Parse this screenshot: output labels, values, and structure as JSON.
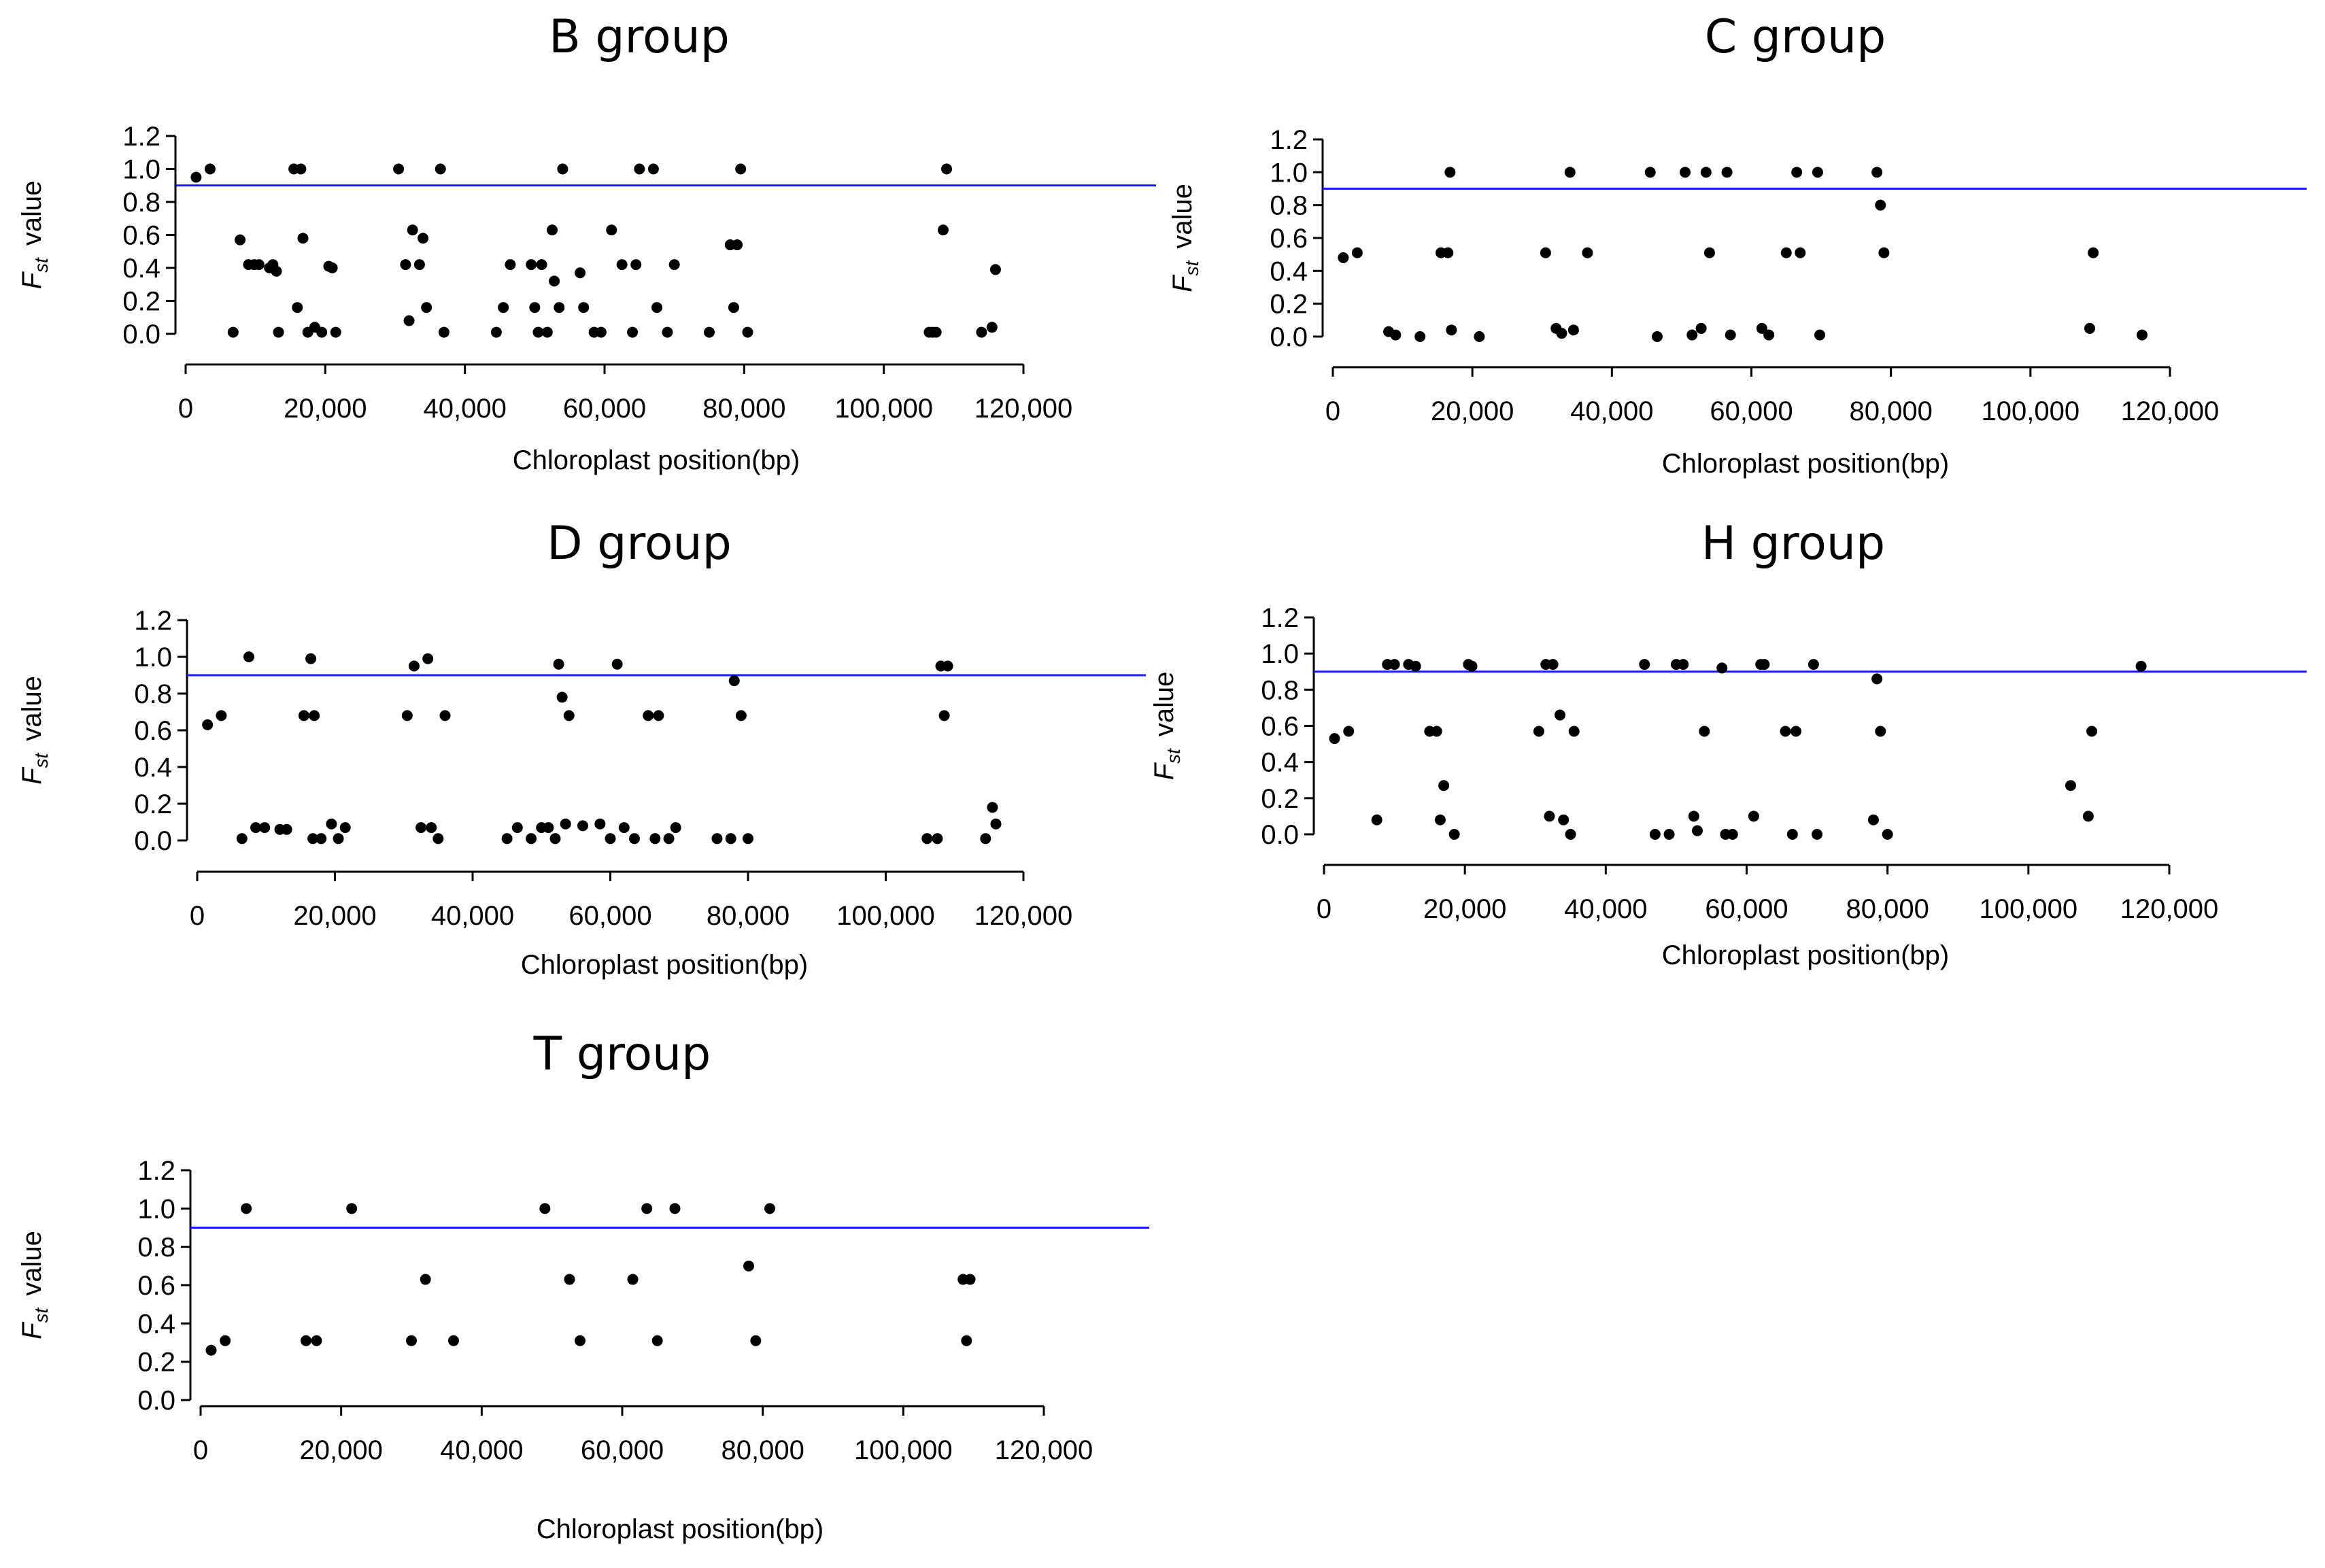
{
  "colors": {
    "threshold_line": "#1a1aff",
    "points": "#000000"
  },
  "chart_data": [
    {
      "type": "scatter",
      "title": "B group",
      "xlabel": "Chloroplast position(bp)",
      "ylabel_symbol": "F",
      "ylabel_subscript": "st",
      "ylabel_word": "value",
      "xlim": [
        0,
        120000
      ],
      "ylim": [
        0,
        1.2
      ],
      "xticks": [
        0,
        20000,
        40000,
        60000,
        80000,
        100000,
        120000
      ],
      "xtick_labels": [
        "0",
        "20,000",
        "40,000",
        "60,000",
        "80,000",
        "100,000",
        "120,000"
      ],
      "yticks": [
        0,
        0.2,
        0.4,
        0.6,
        0.8,
        1.0,
        1.2
      ],
      "ytick_labels": [
        "0.0",
        "0.2",
        "0.4",
        "0.6",
        "0.8",
        "1.0",
        "1.2"
      ],
      "threshold": 0.9,
      "x": [
        1500,
        3500,
        6800,
        7800,
        9000,
        9800,
        10500,
        12000,
        12500,
        13000,
        13300,
        15500,
        16500,
        16000,
        16800,
        17500,
        18500,
        19500,
        20500,
        21000,
        21500,
        30500,
        31500,
        32000,
        32500,
        33500,
        34000,
        34500,
        36500,
        37000,
        44500,
        45500,
        46500,
        49500,
        50000,
        50500,
        51000,
        51800,
        52500,
        52800,
        53500,
        54000,
        56500,
        57000,
        58500,
        59500,
        61000,
        62500,
        64000,
        64500,
        65000,
        67000,
        67500,
        69000,
        70000,
        75000,
        78000,
        78500,
        79000,
        79500,
        80500,
        106500,
        107000,
        107500,
        108500,
        109000,
        114000,
        115500,
        116000
      ],
      "y": [
        0.95,
        1.0,
        0.01,
        0.57,
        0.42,
        0.42,
        0.42,
        0.4,
        0.42,
        0.38,
        0.01,
        1.0,
        1.0,
        0.16,
        0.58,
        0.01,
        0.04,
        0.01,
        0.41,
        0.4,
        0.01,
        1.0,
        0.42,
        0.08,
        0.63,
        0.42,
        0.58,
        0.16,
        1.0,
        0.01,
        0.01,
        0.16,
        0.42,
        0.42,
        0.16,
        0.01,
        0.42,
        0.01,
        0.63,
        0.32,
        0.16,
        1.0,
        0.37,
        0.16,
        0.01,
        0.01,
        0.63,
        0.42,
        0.01,
        0.42,
        1.0,
        1.0,
        0.16,
        0.01,
        0.42,
        0.01,
        0.54,
        0.16,
        0.54,
        1.0,
        0.01,
        0.01,
        0.01,
        0.01,
        0.63,
        1.0,
        0.01,
        0.04,
        0.39
      ]
    },
    {
      "type": "scatter",
      "title": "C group",
      "xlabel": "Chloroplast position(bp)",
      "ylabel_symbol": "F",
      "ylabel_subscript": "st",
      "ylabel_word": "value",
      "xlim": [
        0,
        120000
      ],
      "ylim": [
        0,
        1.2
      ],
      "xticks": [
        0,
        20000,
        40000,
        60000,
        80000,
        100000,
        120000
      ],
      "xtick_labels": [
        "0",
        "20,000",
        "40,000",
        "60,000",
        "80,000",
        "100,000",
        "120,000"
      ],
      "yticks": [
        0,
        0.2,
        0.4,
        0.6,
        0.8,
        1.0,
        1.2
      ],
      "ytick_labels": [
        "0.0",
        "0.2",
        "0.4",
        "0.6",
        "0.8",
        "1.0",
        "1.2"
      ],
      "threshold": 0.9,
      "x": [
        1500,
        3500,
        8000,
        9000,
        12500,
        15500,
        16500,
        16800,
        17000,
        21000,
        30500,
        32000,
        32800,
        34000,
        34500,
        36500,
        45500,
        46500,
        50500,
        51500,
        52800,
        53500,
        54000,
        56500,
        57000,
        61500,
        62500,
        65000,
        66500,
        67000,
        69500,
        69800,
        78000,
        78500,
        79000,
        108500,
        109000,
        116000
      ],
      "y": [
        0.48,
        0.51,
        0.03,
        0.01,
        0.0,
        0.51,
        0.51,
        1.0,
        0.04,
        0.0,
        0.51,
        0.05,
        0.02,
        1.0,
        0.04,
        0.51,
        1.0,
        0.0,
        1.0,
        0.01,
        0.05,
        1.0,
        0.51,
        1.0,
        0.01,
        0.05,
        0.01,
        0.51,
        1.0,
        0.51,
        1.0,
        0.01,
        1.0,
        0.8,
        0.51,
        0.05,
        0.51,
        0.01
      ]
    },
    {
      "type": "scatter",
      "title": "D group",
      "xlabel": "Chloroplast position(bp)",
      "ylabel_symbol": "F",
      "ylabel_subscript": "st",
      "ylabel_word": "value",
      "xlim": [
        0,
        120000
      ],
      "ylim": [
        0,
        1.2
      ],
      "xticks": [
        0,
        20000,
        40000,
        60000,
        80000,
        100000,
        120000
      ],
      "xtick_labels": [
        "0",
        "20,000",
        "40,000",
        "60,000",
        "80,000",
        "100,000",
        "120,000"
      ],
      "yticks": [
        0,
        0.2,
        0.4,
        0.6,
        0.8,
        1.0,
        1.2
      ],
      "ytick_labels": [
        "0.0",
        "0.2",
        "0.4",
        "0.6",
        "0.8",
        "1.0",
        "1.2"
      ],
      "threshold": 0.9,
      "x": [
        1500,
        3500,
        6500,
        7500,
        8500,
        9800,
        12000,
        13000,
        15500,
        16500,
        16800,
        17000,
        18000,
        19500,
        20500,
        21500,
        30500,
        31500,
        32500,
        33500,
        34000,
        35000,
        36000,
        45000,
        46500,
        48500,
        50000,
        51000,
        52000,
        52500,
        53000,
        53500,
        54000,
        56000,
        58500,
        60000,
        61000,
        62000,
        63500,
        65500,
        66500,
        67000,
        68500,
        69500,
        75500,
        77500,
        78000,
        79000,
        80000,
        106000,
        107500,
        108000,
        108500,
        109000,
        114500,
        115500,
        116000
      ],
      "y": [
        0.63,
        0.68,
        0.01,
        1.0,
        0.07,
        0.07,
        0.06,
        0.06,
        0.68,
        0.99,
        0.01,
        0.68,
        0.01,
        0.09,
        0.01,
        0.07,
        0.68,
        0.95,
        0.07,
        0.99,
        0.07,
        0.01,
        0.68,
        0.01,
        0.07,
        0.01,
        0.07,
        0.07,
        0.01,
        0.96,
        0.78,
        0.09,
        0.68,
        0.08,
        0.09,
        0.01,
        0.96,
        0.07,
        0.01,
        0.68,
        0.01,
        0.68,
        0.01,
        0.07,
        0.01,
        0.01,
        0.87,
        0.68,
        0.01,
        0.01,
        0.01,
        0.95,
        0.68,
        0.95,
        0.01,
        0.18,
        0.09
      ]
    },
    {
      "type": "scatter",
      "title": "H group",
      "xlabel": "Chloroplast position(bp)",
      "ylabel_symbol": "F",
      "ylabel_subscript": "st",
      "ylabel_word": "value",
      "xlim": [
        0,
        120000
      ],
      "ylim": [
        0,
        1.2
      ],
      "xticks": [
        0,
        20000,
        40000,
        60000,
        80000,
        100000,
        120000
      ],
      "xtick_labels": [
        "0",
        "20,000",
        "40,000",
        "60,000",
        "80,000",
        "100,000",
        "120,000"
      ],
      "yticks": [
        0,
        0.2,
        0.4,
        0.6,
        0.8,
        1.0,
        1.2
      ],
      "ytick_labels": [
        "0.0",
        "0.2",
        "0.4",
        "0.6",
        "0.8",
        "1.0",
        "1.2"
      ],
      "threshold": 0.9,
      "x": [
        1500,
        3500,
        7500,
        9000,
        10000,
        12000,
        13000,
        15000,
        16000,
        16500,
        17000,
        18500,
        20500,
        21000,
        30500,
        31500,
        32000,
        32500,
        33500,
        34000,
        35000,
        35500,
        45500,
        47000,
        49000,
        50000,
        51000,
        52500,
        53000,
        54000,
        56500,
        57000,
        58000,
        61000,
        62000,
        62500,
        65500,
        66500,
        67000,
        69500,
        70000,
        78000,
        78500,
        79000,
        80000,
        106000,
        108500,
        109000,
        116000
      ],
      "y": [
        0.53,
        0.57,
        0.08,
        0.94,
        0.94,
        0.94,
        0.93,
        0.57,
        0.57,
        0.08,
        0.27,
        0.0,
        0.94,
        0.93,
        0.57,
        0.94,
        0.1,
        0.94,
        0.66,
        0.08,
        0.0,
        0.57,
        0.94,
        0.0,
        0.0,
        0.94,
        0.94,
        0.1,
        0.02,
        0.57,
        0.92,
        0.0,
        0.0,
        0.1,
        0.94,
        0.94,
        0.57,
        0.0,
        0.57,
        0.94,
        0.0,
        0.08,
        0.86,
        0.57,
        0.0,
        0.27,
        0.1,
        0.57,
        0.93
      ]
    },
    {
      "type": "scatter",
      "title": "T group",
      "xlabel": "Chloroplast position(bp)",
      "ylabel_symbol": "F",
      "ylabel_subscript": "st",
      "ylabel_word": "value",
      "xlim": [
        0,
        120000
      ],
      "ylim": [
        0,
        1.2
      ],
      "xticks": [
        0,
        20000,
        40000,
        60000,
        80000,
        100000,
        120000
      ],
      "xtick_labels": [
        "0",
        "20,000",
        "40,000",
        "60,000",
        "80,000",
        "100,000",
        "120,000"
      ],
      "yticks": [
        0,
        0.2,
        0.4,
        0.6,
        0.8,
        1.0,
        1.2
      ],
      "ytick_labels": [
        "0.0",
        "0.2",
        "0.4",
        "0.6",
        "0.8",
        "1.0",
        "1.2"
      ],
      "threshold": 0.9,
      "x": [
        1500,
        3500,
        6500,
        15000,
        16500,
        21500,
        30000,
        32000,
        36000,
        49000,
        52500,
        54000,
        61500,
        63500,
        65000,
        67500,
        78000,
        79000,
        81000,
        108500,
        109000,
        109500
      ],
      "y": [
        0.26,
        0.31,
        1.0,
        0.31,
        0.31,
        1.0,
        0.31,
        0.63,
        0.31,
        1.0,
        0.63,
        0.31,
        0.63,
        1.0,
        0.31,
        1.0,
        0.7,
        0.31,
        1.0,
        0.63,
        0.31,
        0.63
      ]
    }
  ]
}
